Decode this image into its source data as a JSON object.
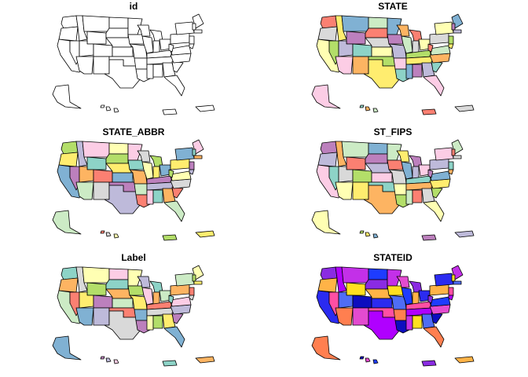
{
  "panels": [
    {
      "title": "id",
      "scheme": "none"
    },
    {
      "title": "STATE",
      "scheme": "pastel"
    },
    {
      "title": "STATE_ABBR",
      "scheme": "pastel"
    },
    {
      "title": "ST_FIPS",
      "scheme": "pastel"
    },
    {
      "title": "Label",
      "scheme": "pastel"
    },
    {
      "title": "STATEID",
      "scheme": "vivid"
    }
  ],
  "colors": {
    "pastel": [
      "#8dd3c7",
      "#ffffb3",
      "#bebada",
      "#fb8072",
      "#80b1d3",
      "#fdb462",
      "#b3de69",
      "#fccde5",
      "#d9d9d9",
      "#bc80bd",
      "#ccebc5",
      "#ffed6f"
    ],
    "vivid": [
      "#0d0dbf",
      "#2b2bf0",
      "#4f6df5",
      "#8a2be2",
      "#c330e8",
      "#e34bd0",
      "#ff4fa3",
      "#ff7f50",
      "#ffb347",
      "#ffe020",
      "#1e3cff",
      "#b000ff"
    ],
    "none": [
      "#ffffff"
    ],
    "stroke": "#000000"
  }
}
